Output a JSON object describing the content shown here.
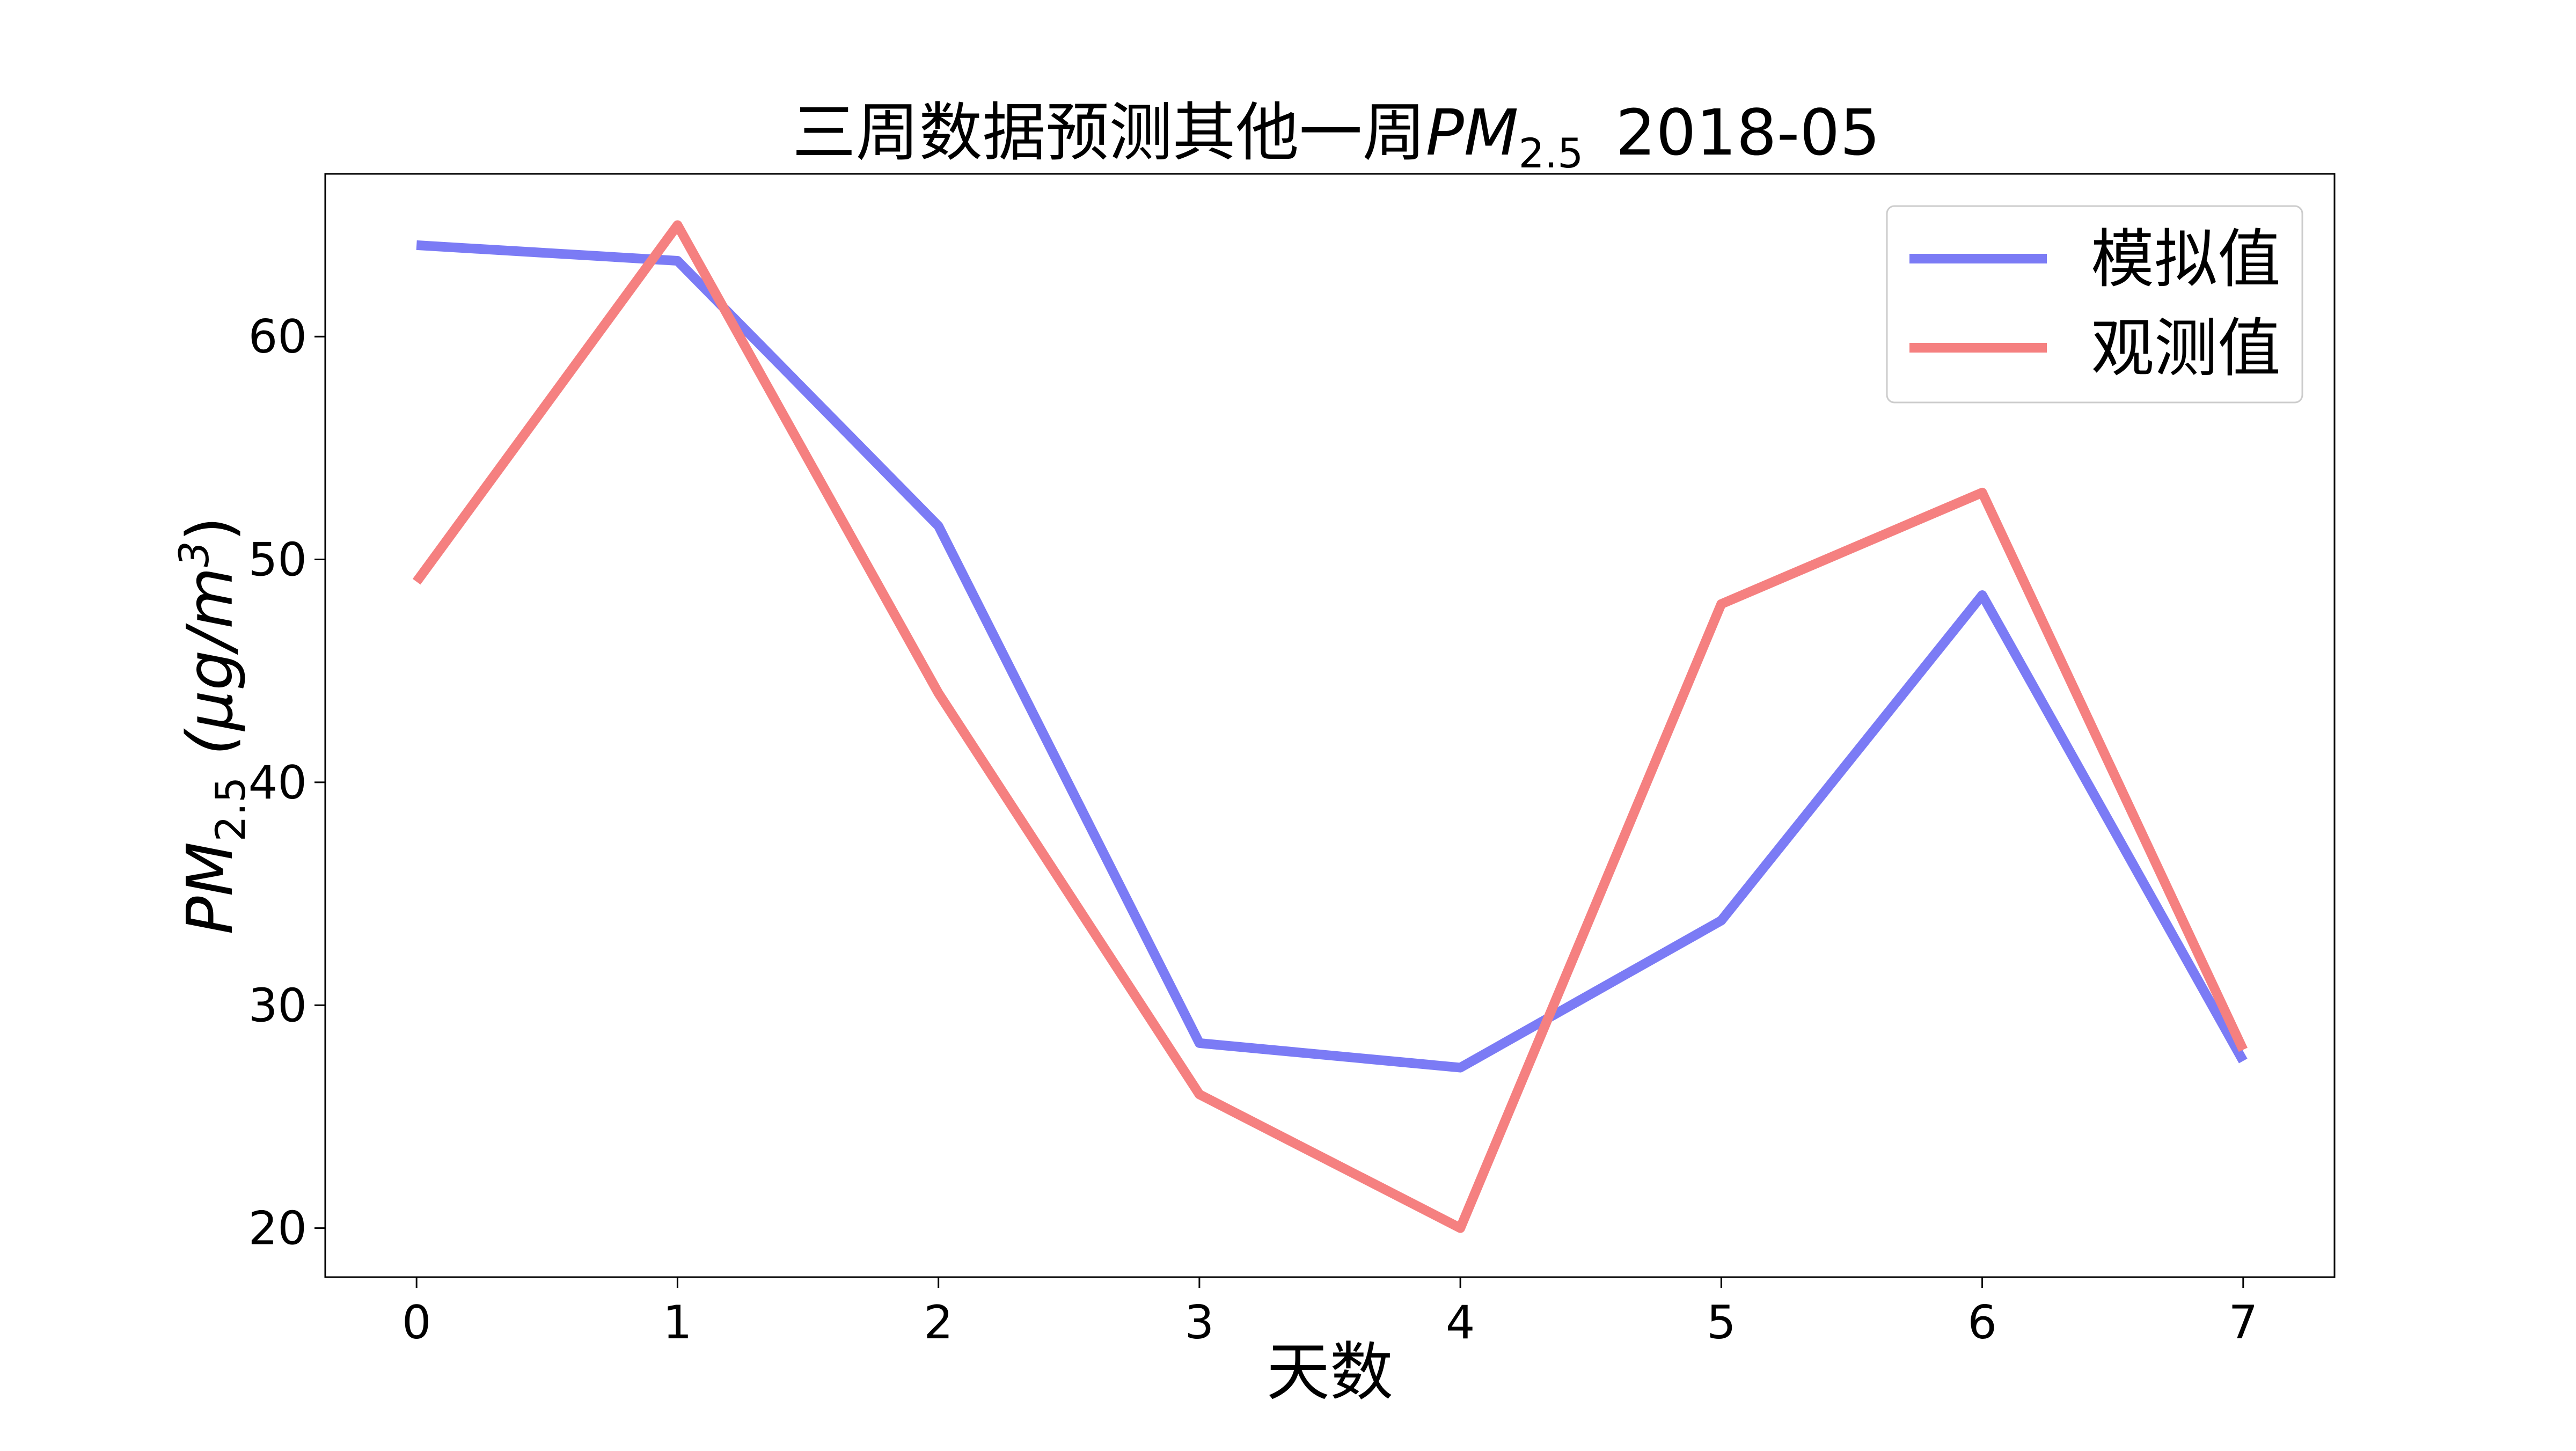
{
  "chart_data": {
    "type": "line",
    "title": {
      "main": "三周数据预测其他一周",
      "pm": "PM",
      "pm_sub": "2.5",
      "suffix": "2018-05"
    },
    "xlabel": "天数",
    "ylabel": {
      "pm": "PM",
      "pm_sub": "2.5",
      "unit_open": "(μg/m",
      "unit_sup": "3",
      "unit_close": ")"
    },
    "x": [
      0,
      1,
      2,
      3,
      4,
      5,
      6,
      7
    ],
    "xlim": [
      -0.35,
      7.35
    ],
    "ylim": [
      17.8,
      67.3
    ],
    "x_ticks": [
      0,
      1,
      2,
      3,
      4,
      5,
      6,
      7
    ],
    "y_ticks": [
      20,
      30,
      40,
      50,
      60
    ],
    "grid": false,
    "legend_position": "top-right",
    "series": [
      {
        "name": "模拟值",
        "color": "#7b7bf5",
        "values": [
          64.1,
          63.4,
          51.5,
          28.3,
          27.2,
          33.8,
          48.4,
          27.5
        ]
      },
      {
        "name": "观测值",
        "color": "#f58080",
        "values": [
          49.0,
          65.0,
          44.0,
          26.0,
          20.0,
          48.0,
          53.0,
          28.0
        ]
      }
    ]
  }
}
